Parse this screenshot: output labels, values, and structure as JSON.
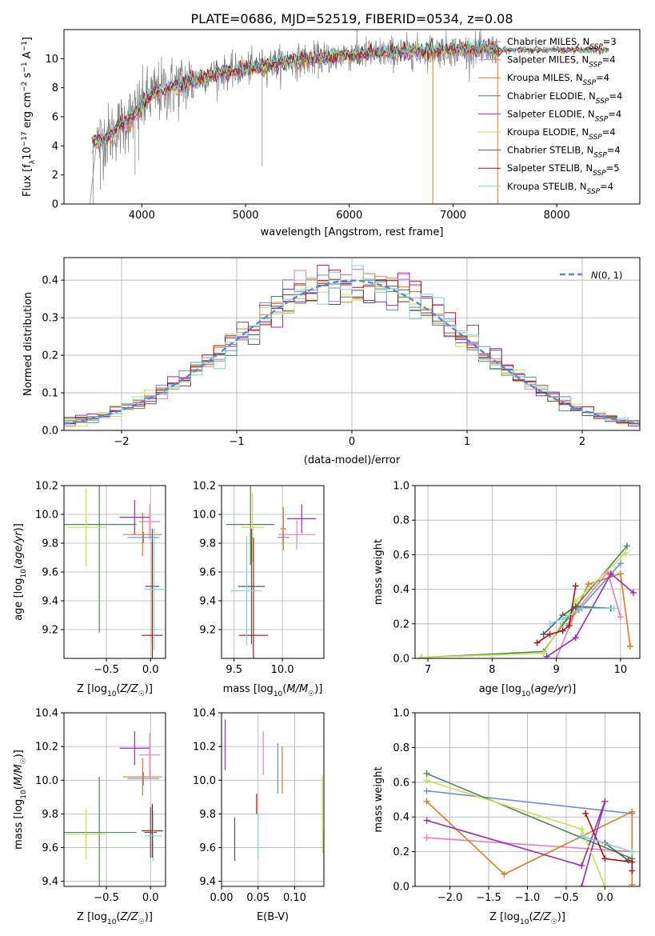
{
  "figure": {
    "title": "PLATE=0686, MJD=52519, FIBERID=0534, z=0.08"
  },
  "series": [
    {
      "name": "Chabrier MILES, N_SSP=3",
      "color": "#6a8ee0"
    },
    {
      "name": "Salpeter MILES, N_SSP=4",
      "color": "#f07ab4"
    },
    {
      "name": "Kroupa MILES, N_SSP=4",
      "color": "#e07b20"
    },
    {
      "name": "Chabrier ELODIE, N_SSP=4",
      "color": "#4a8a5a"
    },
    {
      "name": "Salpeter ELODIE, N_SSP=4",
      "color": "#9a2ab8"
    },
    {
      "name": "Kroupa ELODIE, N_SSP=4",
      "color": "#c8e04a"
    },
    {
      "name": "Chabrier STELIB, N_SSP=4",
      "color": "#555555"
    },
    {
      "name": "Salpeter STELIB, N_SSP=5",
      "color": "#b01010"
    },
    {
      "name": "Kroupa STELIB, N_SSP=4",
      "color": "#7ad8d8"
    }
  ],
  "chart_data": [
    {
      "id": "spectrum",
      "type": "line",
      "xlabel": "wavelength [Angstrom, rest frame]",
      "ylabel": "Flux [f_λ10^-17 erg cm^-2 s^-1 A^-1]",
      "xlim": [
        3250,
        8800
      ],
      "ylim": [
        0,
        12
      ],
      "xticks": [
        4000,
        5000,
        6000,
        7000,
        8000
      ],
      "yticks": [
        0,
        2,
        4,
        6,
        8,
        10
      ],
      "grid": false,
      "legend": "right",
      "continuum": {
        "x": [
          3550,
          3700,
          3900,
          4100,
          4400,
          4700,
          5000,
          5300,
          5700,
          6000,
          6300,
          6600,
          6900,
          7200,
          7400
        ],
        "y": [
          4.2,
          4.8,
          6.0,
          7.5,
          8.3,
          8.9,
          9.3,
          9.7,
          10.0,
          10.3,
          10.4,
          10.5,
          10.6,
          10.6,
          10.6
        ]
      },
      "data_end": 7430,
      "model_end": 8500
    },
    {
      "id": "residuals",
      "type": "step",
      "xlabel": "(data-model)/error",
      "ylabel": "Normed distribution",
      "xlim": [
        -2.5,
        2.5
      ],
      "ylim": [
        0,
        0.46
      ],
      "xticks": [
        -2,
        -1,
        0,
        1,
        2
      ],
      "yticks": [
        0.0,
        0.1,
        0.2,
        0.3,
        0.4
      ],
      "grid": true,
      "legend": "top-right",
      "reference": {
        "name": "N(0,1)",
        "mu": 0,
        "sigma": 1,
        "color": "#5b86d8"
      },
      "bin_width": 0.1
    },
    {
      "id": "age-vs-Z",
      "type": "errorbar",
      "xlabel": "Z [log10(Z/Z☉)]",
      "ylabel": "age [log10(age/yr)]",
      "xlim": [
        -0.98,
        0.17
      ],
      "ylim": [
        9.0,
        10.2
      ],
      "xticks": [
        -0.5,
        0.0
      ],
      "yticks": [
        9.2,
        9.4,
        9.6,
        9.8,
        10.0,
        10.2
      ],
      "grid": true,
      "points": [
        {
          "s": 0,
          "x": -0.08,
          "xe": 0.18,
          "y": 9.84,
          "ye": 0.04
        },
        {
          "s": 1,
          "x": -0.01,
          "xe": 0.12,
          "y": 9.95,
          "ye": 0.12
        },
        {
          "s": 2,
          "x": -0.09,
          "xe": 0.22,
          "y": 9.86,
          "ye": 0.15
        },
        {
          "s": 3,
          "x": -0.58,
          "xe": 0.42,
          "y": 9.93,
          "ye": 0.75
        },
        {
          "s": 4,
          "x": -0.18,
          "xe": 0.17,
          "y": 9.98,
          "ye": 0.12
        },
        {
          "s": 5,
          "x": -0.73,
          "xe": 0.22,
          "y": 9.91,
          "ye": 0.27
        },
        {
          "s": 6,
          "x": 0.02,
          "xe": 0.08,
          "y": 9.5,
          "ye": 0.4
        },
        {
          "s": 7,
          "x": 0.02,
          "xe": 0.12,
          "y": 9.16,
          "ye": 0.65
        },
        {
          "s": 8,
          "x": 0.04,
          "xe": 0.11,
          "y": 9.48,
          "ye": 0.42
        }
      ]
    },
    {
      "id": "age-vs-mass",
      "type": "errorbar",
      "xlabel": "mass [log10(M/M☉)]",
      "ylabel": "",
      "xlim": [
        9.37,
        10.43
      ],
      "ylim": [
        9.0,
        10.2
      ],
      "xticks": [
        9.5,
        10.0
      ],
      "yticks": [
        9.2,
        9.4,
        9.6,
        9.8,
        10.0,
        10.2
      ],
      "grid": true,
      "points": [
        {
          "s": 0,
          "x": 10.01,
          "xe": 0.06,
          "y": 9.84,
          "ye": 0.03
        },
        {
          "s": 1,
          "x": 10.15,
          "xe": 0.19,
          "y": 9.86,
          "ye": 0.1
        },
        {
          "s": 2,
          "x": 10.01,
          "xe": 0.03,
          "y": 9.9,
          "ye": 0.15
        },
        {
          "s": 3,
          "x": 9.67,
          "xe": 0.25,
          "y": 9.93,
          "ye": 0.28
        },
        {
          "s": 4,
          "x": 10.2,
          "xe": 0.15,
          "y": 9.97,
          "ye": 0.1
        },
        {
          "s": 5,
          "x": 9.69,
          "xe": 0.12,
          "y": 9.91,
          "ye": 0.24
        },
        {
          "s": 6,
          "x": 9.68,
          "xe": 0.14,
          "y": 9.5,
          "ye": 0.4
        },
        {
          "s": 7,
          "x": 9.7,
          "xe": 0.15,
          "y": 9.16,
          "ye": 0.68
        },
        {
          "s": 8,
          "x": 9.63,
          "xe": 0.16,
          "y": 9.47,
          "ye": 0.38
        }
      ]
    },
    {
      "id": "mass-weight-vs-age",
      "type": "line",
      "xlabel": "age [log10(age/yr)]",
      "ylabel": "mass weight",
      "xlim": [
        6.8,
        10.3
      ],
      "ylim": [
        0.0,
        1.0
      ],
      "xticks": [
        7,
        8,
        9,
        10
      ],
      "yticks": [
        0.0,
        0.2,
        0.4,
        0.6,
        0.8,
        1.0
      ],
      "grid": true,
      "lines": [
        {
          "s": 0,
          "x": [
            9.1,
            9.35,
            10.0
          ],
          "y": [
            0.2,
            0.28,
            0.55
          ]
        },
        {
          "s": 1,
          "x": [
            9.0,
            9.3,
            9.8,
            10.0
          ],
          "y": [
            0.0,
            0.27,
            0.5,
            0.24
          ]
        },
        {
          "s": 2,
          "x": [
            9.2,
            9.5,
            10.0,
            10.15
          ],
          "y": [
            0.2,
            0.43,
            0.49,
            0.07
          ]
        },
        {
          "s": 3,
          "x": [
            6.9,
            8.8,
            9.3,
            10.1
          ],
          "y": [
            0.005,
            0.04,
            0.3,
            0.65
          ]
        },
        {
          "s": 4,
          "x": [
            8.85,
            9.3,
            9.85,
            10.2
          ],
          "y": [
            0.01,
            0.12,
            0.49,
            0.38
          ]
        },
        {
          "s": 5,
          "x": [
            6.9,
            8.8,
            9.3,
            10.08
          ],
          "y": [
            0.005,
            0.03,
            0.33,
            0.61
          ]
        },
        {
          "s": 6,
          "x": [
            8.8,
            9.1,
            9.3,
            9.85
          ],
          "y": [
            0.14,
            0.25,
            0.3,
            0.29
          ]
        },
        {
          "s": 7,
          "x": [
            8.7,
            8.9,
            9.1,
            9.2,
            9.3
          ],
          "y": [
            0.09,
            0.14,
            0.16,
            0.19,
            0.42
          ]
        },
        {
          "s": 8,
          "x": [
            8.9,
            9.1,
            9.4,
            9.9
          ],
          "y": [
            0.2,
            0.23,
            0.29,
            0.29
          ]
        }
      ]
    },
    {
      "id": "mass-vs-Z",
      "type": "errorbar",
      "xlabel": "Z [log10(Z/Z☉)]",
      "ylabel": "mass [log10(M/M☉)]",
      "xlim": [
        -0.98,
        0.17
      ],
      "ylim": [
        9.37,
        10.4
      ],
      "xticks": [
        -0.5,
        0.0
      ],
      "yticks": [
        9.4,
        9.6,
        9.8,
        10.0,
        10.2,
        10.4
      ],
      "grid": true,
      "points": [
        {
          "s": 0,
          "x": -0.08,
          "xe": 0.18,
          "y": 10.01,
          "ye": 0.04
        },
        {
          "s": 1,
          "x": -0.01,
          "xe": 0.12,
          "y": 10.15,
          "ye": 0.13
        },
        {
          "s": 2,
          "x": -0.09,
          "xe": 0.22,
          "y": 10.02,
          "ye": 0.11
        },
        {
          "s": 3,
          "x": -0.58,
          "xe": 0.42,
          "y": 9.69,
          "ye": 0.33
        },
        {
          "s": 4,
          "x": -0.18,
          "xe": 0.17,
          "y": 10.19,
          "ye": 0.1
        },
        {
          "s": 5,
          "x": -0.73,
          "xe": 0.22,
          "y": 9.68,
          "ye": 0.15
        },
        {
          "s": 6,
          "x": 0.0,
          "xe": 0.07,
          "y": 9.69,
          "ye": 0.15
        },
        {
          "s": 7,
          "x": 0.02,
          "xe": 0.12,
          "y": 9.7,
          "ye": 0.16
        },
        {
          "s": 8,
          "x": 0.03,
          "xe": 0.1,
          "y": 9.67,
          "ye": 0.15
        }
      ]
    },
    {
      "id": "mass-vs-ebv",
      "type": "errorbar",
      "xlabel": "E(B-V)",
      "ylabel": "",
      "xlim": [
        0.0,
        0.14
      ],
      "ylim": [
        9.37,
        10.4
      ],
      "xticks": [
        0.0,
        0.05,
        0.1
      ],
      "yticks": [
        9.4,
        9.6,
        9.8,
        10.0,
        10.2,
        10.4
      ],
      "grid": true,
      "points": [
        {
          "s": 0,
          "x": 0.077,
          "xe": 0,
          "y": 10.07,
          "ye": 0.15
        },
        {
          "s": 1,
          "x": 0.057,
          "xe": 0,
          "y": 10.16,
          "ye": 0.13
        },
        {
          "s": 2,
          "x": 0.083,
          "xe": 0,
          "y": 10.06,
          "ye": 0.14
        },
        {
          "s": 3,
          "x": 0.14,
          "xe": 0,
          "y": 9.56,
          "ye": 0.15
        },
        {
          "s": 4,
          "x": 0.005,
          "xe": 0,
          "y": 10.21,
          "ye": 0.15
        },
        {
          "s": 5,
          "x": 0.138,
          "xe": 0,
          "y": 9.8,
          "ye": 0.23
        },
        {
          "s": 6,
          "x": 0.018,
          "xe": 0,
          "y": 9.65,
          "ye": 0.13
        },
        {
          "s": 7,
          "x": 0.048,
          "xe": 0,
          "y": 9.86,
          "ye": 0.06
        },
        {
          "s": 8,
          "x": 0.05,
          "xe": 0,
          "y": 9.67,
          "ye": 0.14
        }
      ]
    },
    {
      "id": "mass-weight-vs-Z",
      "type": "line",
      "xlabel": "Z [log10(Z/Z☉)]",
      "ylabel": "mass weight",
      "xlim": [
        -2.45,
        0.45
      ],
      "ylim": [
        0.0,
        1.0
      ],
      "xticks": [
        -2.0,
        -1.5,
        -1.0,
        -0.5,
        0.0
      ],
      "yticks": [
        0.0,
        0.2,
        0.4,
        0.6,
        0.8,
        1.0
      ],
      "grid": true,
      "lines": [
        {
          "s": 0,
          "x": [
            -2.3,
            0.35
          ],
          "y": [
            0.55,
            0.42
          ]
        },
        {
          "s": 1,
          "x": [
            -2.3,
            0.35
          ],
          "y": [
            0.28,
            0.2
          ]
        },
        {
          "s": 2,
          "x": [
            -2.3,
            -1.3,
            0.35,
            0.35
          ],
          "y": [
            0.49,
            0.07,
            0.43,
            0.01
          ]
        },
        {
          "s": 3,
          "x": [
            -2.3,
            0.35
          ],
          "y": [
            0.65,
            0.16
          ]
        },
        {
          "s": 4,
          "x": [
            -2.3,
            -0.3,
            0.0,
            -0.3
          ],
          "y": [
            0.38,
            0.12,
            0.49,
            0.0
          ]
        },
        {
          "s": 5,
          "x": [
            -2.3,
            -0.3,
            0.0
          ],
          "y": [
            0.61,
            0.33,
            0.0
          ]
        },
        {
          "s": 6,
          "x": [
            -0.3,
            0.0,
            0.3
          ],
          "y": [
            0.29,
            0.25,
            0.15
          ]
        },
        {
          "s": 7,
          "x": [
            -0.25,
            0.0,
            0.35,
            0.35
          ],
          "y": [
            0.42,
            0.16,
            0.14,
            0.09
          ]
        },
        {
          "s": 8,
          "x": [
            -0.3,
            0.35
          ],
          "y": [
            0.29,
            0.2
          ]
        }
      ]
    }
  ]
}
